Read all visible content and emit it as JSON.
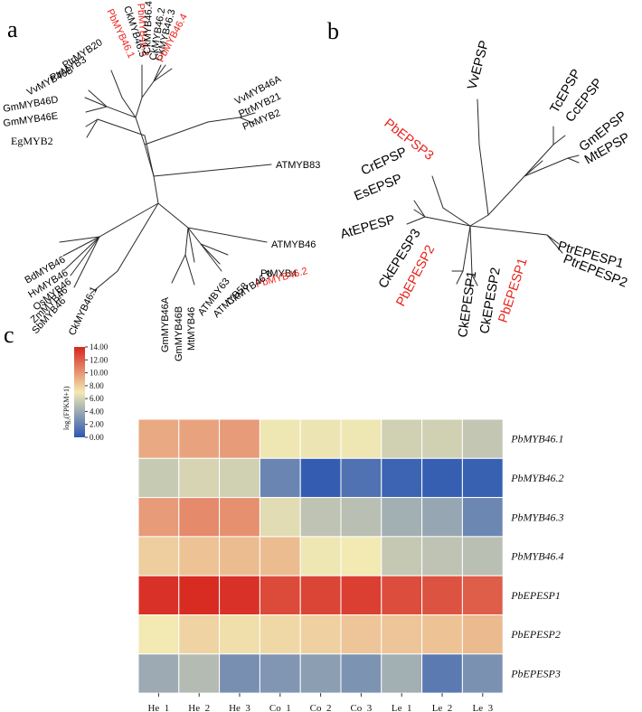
{
  "panels": {
    "a": "a",
    "b": "b",
    "c": "c"
  },
  "colors": {
    "highlight": "#e8221b",
    "text": "#000000",
    "branch": "#2a2a2a"
  },
  "tree_a": {
    "leaves": [
      {
        "label": "PbMYB46.1",
        "highlight": true
      },
      {
        "label": "CkMYB46.5",
        "highlight": false
      },
      {
        "label": "PbMYB46.3",
        "highlight": true
      },
      {
        "label": "CkMYB46.4",
        "highlight": false
      },
      {
        "label": "CkMYB46.2",
        "highlight": false
      },
      {
        "label": "CkMYB46.3",
        "highlight": false
      },
      {
        "label": "PbMYB46.4",
        "highlight": true
      },
      {
        "label": "PtrMYB20",
        "highlight": false
      },
      {
        "label": "PtrMYB3",
        "highlight": false
      },
      {
        "label": "VvMYB46B",
        "highlight": false
      },
      {
        "label": "GmMYB46D",
        "highlight": false
      },
      {
        "label": "GmMYB46E",
        "highlight": false
      },
      {
        "label": "EgMYB2",
        "highlight": false
      },
      {
        "label": "VvMYB46A",
        "highlight": false
      },
      {
        "label": "PtrMYB21",
        "highlight": false
      },
      {
        "label": "PtrMYB2",
        "highlight": false
      },
      {
        "label": "ATMYB83",
        "highlight": false
      },
      {
        "label": "ATMYB46",
        "highlight": false
      },
      {
        "label": "PtMYB4",
        "highlight": false
      },
      {
        "label": "PbMYB46.2",
        "highlight": true
      },
      {
        "label": "CkMYB46.6",
        "highlight": false
      },
      {
        "label": "ATMYB58",
        "highlight": false
      },
      {
        "label": "ATMBY63",
        "highlight": false
      },
      {
        "label": "BdMYB46",
        "highlight": false
      },
      {
        "label": "HvMYB46",
        "highlight": false
      },
      {
        "label": "OsMYB46",
        "highlight": false
      },
      {
        "label": "ZmMYB46",
        "highlight": false
      },
      {
        "label": "SbMYB46",
        "highlight": false
      },
      {
        "label": "CkMYB46.1",
        "highlight": false
      },
      {
        "label": "GmMYB46A",
        "highlight": false
      },
      {
        "label": "GmMYB46B",
        "highlight": false
      },
      {
        "label": "MtMYB46",
        "highlight": false
      }
    ]
  },
  "tree_b": {
    "leaves": [
      {
        "label": "VvEPSP",
        "highlight": false
      },
      {
        "label": "TcEPSP",
        "highlight": false
      },
      {
        "label": "CcEPSP",
        "highlight": false
      },
      {
        "label": "GmEPSP",
        "highlight": false
      },
      {
        "label": "MtEPSP",
        "highlight": false
      },
      {
        "label": "PbEPSP3",
        "highlight": true
      },
      {
        "label": "CrEPSP",
        "highlight": false
      },
      {
        "label": "EsEPSP",
        "highlight": false
      },
      {
        "label": "AtEPESP",
        "highlight": false
      },
      {
        "label": "PtrEPESP1",
        "highlight": false
      },
      {
        "label": "PtrEPESP2",
        "highlight": false
      },
      {
        "label": "CkEPESP3",
        "highlight": false
      },
      {
        "label": "PbEPESP2",
        "highlight": true
      },
      {
        "label": "CkEPESP1",
        "highlight": false
      },
      {
        "label": "CkEPESP2",
        "highlight": false
      },
      {
        "label": "PbEPESP1",
        "highlight": true
      }
    ]
  },
  "chart_data": {
    "type": "heatmap",
    "columns": [
      "He_1",
      "He_2",
      "He_3",
      "Co_1",
      "Co_2",
      "Co_3",
      "Le_1",
      "Le_2",
      "Le_3"
    ],
    "rows": [
      "PbMYB46.1",
      "PbMYB46.2",
      "PbMYB46.3",
      "PbMYB46.4",
      "PbEPESP1",
      "PbEPESP2",
      "PbEPESP3"
    ],
    "values": [
      [
        9.3,
        9.5,
        9.8,
        6.9,
        6.8,
        6.9,
        5.8,
        5.8,
        5.3
      ],
      [
        5.5,
        6.0,
        5.8,
        2.2,
        0.3,
        1.3,
        0.6,
        0.4,
        0.5
      ],
      [
        9.8,
        10.4,
        10.2,
        6.4,
        5.2,
        5.0,
        4.2,
        3.8,
        2.3
      ],
      [
        8.0,
        8.4,
        8.6,
        8.6,
        6.9,
        7.0,
        5.4,
        5.2,
        5.0
      ],
      [
        13.6,
        13.8,
        13.6,
        12.7,
        12.9,
        13.1,
        12.6,
        12.4,
        12.0
      ],
      [
        7.0,
        7.8,
        7.4,
        7.6,
        7.9,
        8.3,
        8.3,
        8.4,
        8.7
      ],
      [
        4.0,
        4.8,
        2.7,
        3.0,
        3.4,
        2.9,
        4.2,
        1.7,
        2.8
      ]
    ],
    "legend": {
      "title": "log₂(FPKM+1)",
      "ticks": [
        "14.00",
        "12.00",
        "10.00",
        "8.00",
        "6.00",
        "4.00",
        "2.00",
        "0.00"
      ],
      "min": 0,
      "max": 14,
      "color_stops": [
        "#2b57b2",
        "#f2e9b3",
        "#d7261f"
      ]
    }
  }
}
